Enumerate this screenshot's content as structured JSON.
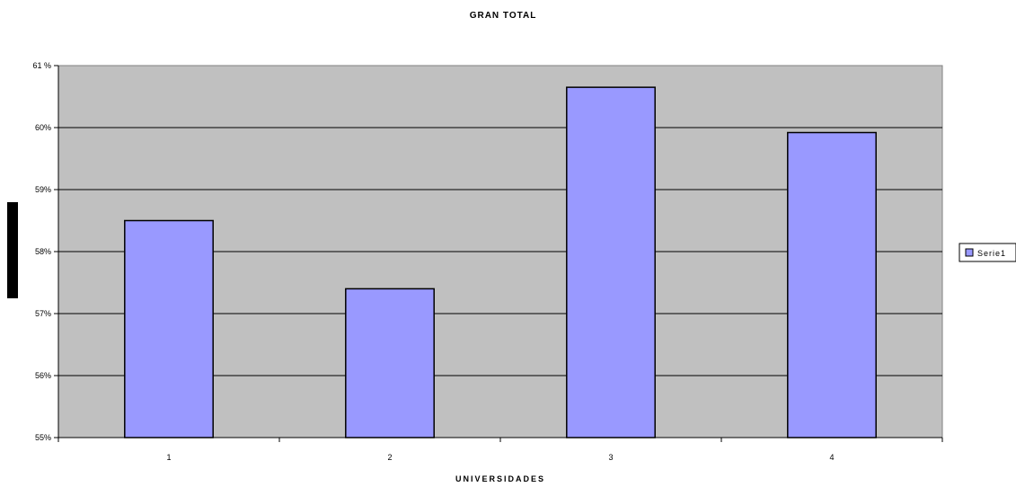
{
  "chart_data": {
    "type": "bar",
    "title": "GRAN TOTAL",
    "xlabel": "UNIVERSIDADES",
    "ylabel": "",
    "categories": [
      "1",
      "2",
      "3",
      "4"
    ],
    "series": [
      {
        "name": "Serie1",
        "values": [
          58.5,
          57.4,
          60.65,
          59.92
        ]
      }
    ],
    "ylim": [
      55,
      61
    ],
    "yticks": [
      "55%",
      "56%",
      "57%",
      "58%",
      "59%",
      "60%",
      "61 %"
    ],
    "grid": true,
    "legend": "right",
    "colors": {
      "bar": "#9999ff",
      "plot_background": "#c0c0c0",
      "outline": "#000000",
      "ylabel_marker": "#000000"
    }
  }
}
